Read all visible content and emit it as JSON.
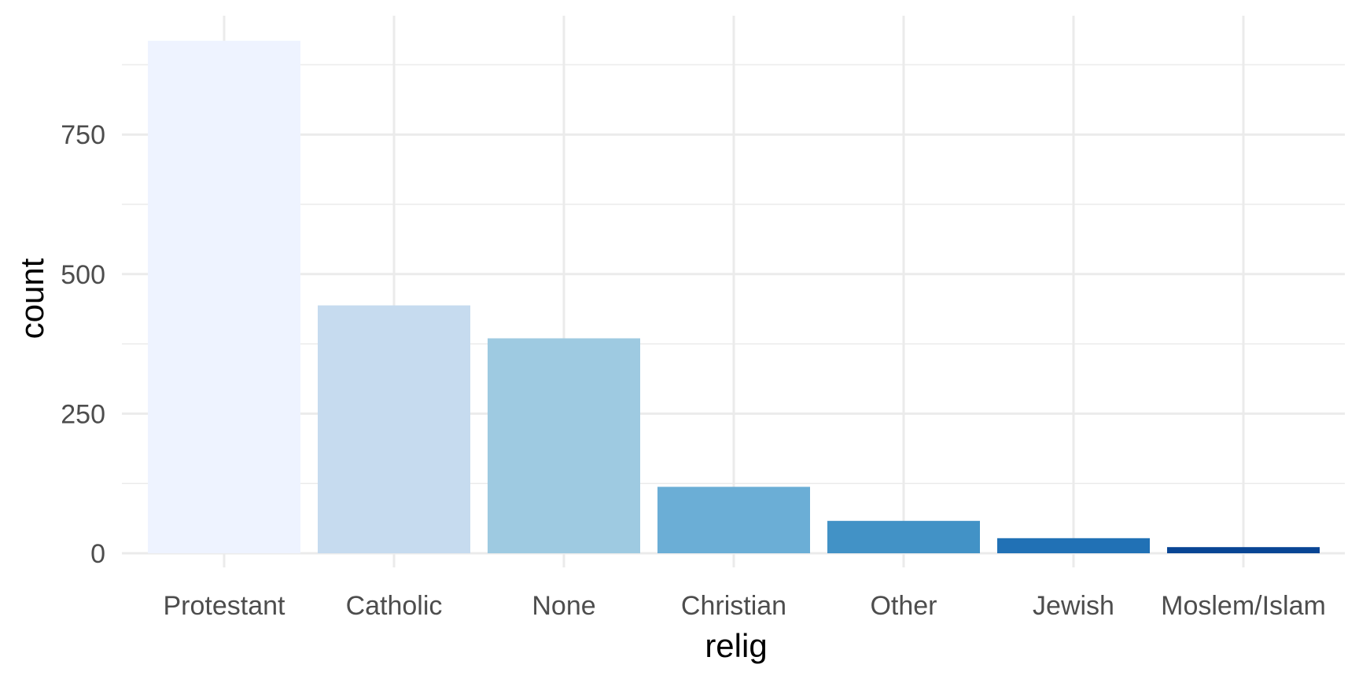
{
  "chart_data": {
    "type": "bar",
    "title": "",
    "xlabel": "relig",
    "ylabel": "count",
    "categories": [
      "Protestant",
      "Catholic",
      "None",
      "Christian",
      "Other",
      "Jewish",
      "Moslem/Islam"
    ],
    "values": [
      918,
      444,
      385,
      119,
      58,
      27,
      11
    ],
    "colors": [
      "#eef3ff",
      "#c6dbef",
      "#9ecae1",
      "#6baed6",
      "#4292c6",
      "#2171b5",
      "#084594"
    ],
    "ylim": [
      0,
      960
    ],
    "yticks": [
      0,
      250,
      500,
      750
    ],
    "grid": true,
    "legend": "none"
  }
}
